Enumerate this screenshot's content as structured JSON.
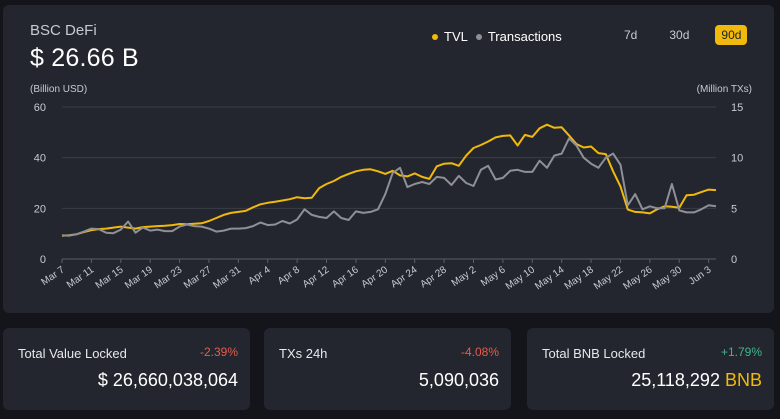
{
  "header": {
    "title": "BSC DeFi",
    "value": "$ 26.66 B",
    "left_unit": "(Billion USD)",
    "right_unit": "(Million TXs)"
  },
  "legend": {
    "tvl_label": "TVL",
    "tx_label": "Transactions",
    "tvl_color": "#f0b90b",
    "tx_color": "#8e9096"
  },
  "range_buttons": [
    "7d",
    "30d",
    "90d"
  ],
  "active_range": "90d",
  "chart_data": {
    "type": "line",
    "x": [
      "Mar 7",
      "Mar 8",
      "Mar 9",
      "Mar 10",
      "Mar 11",
      "Mar 12",
      "Mar 13",
      "Mar 14",
      "Mar 15",
      "Mar 16",
      "Mar 17",
      "Mar 18",
      "Mar 19",
      "Mar 20",
      "Mar 21",
      "Mar 22",
      "Mar 23",
      "Mar 24",
      "Mar 25",
      "Mar 26",
      "Mar 27",
      "Mar 28",
      "Mar 29",
      "Mar 30",
      "Mar 31",
      "Apr 1",
      "Apr 2",
      "Apr 3",
      "Apr 4",
      "Apr 5",
      "Apr 6",
      "Apr 7",
      "Apr 8",
      "Apr 9",
      "Apr 10",
      "Apr 11",
      "Apr 12",
      "Apr 13",
      "Apr 14",
      "Apr 15",
      "Apr 16",
      "Apr 17",
      "Apr 18",
      "Apr 19",
      "Apr 20",
      "Apr 21",
      "Apr 22",
      "Apr 23",
      "Apr 24",
      "Apr 25",
      "Apr 26",
      "Apr 27",
      "Apr 28",
      "Apr 29",
      "Apr 30",
      "May 1",
      "May 2",
      "May 3",
      "May 4",
      "May 5",
      "May 6",
      "May 7",
      "May 8",
      "May 9",
      "May 10",
      "May 11",
      "May 12",
      "May 13",
      "May 14",
      "May 15",
      "May 16",
      "May 17",
      "May 18",
      "May 19",
      "May 20",
      "May 21",
      "May 22",
      "May 23",
      "May 24",
      "May 25",
      "May 26",
      "May 27",
      "May 28",
      "May 29",
      "May 30",
      "May 31",
      "Jun 1",
      "Jun 2",
      "Jun 3",
      "Jun 4"
    ],
    "tick_labels": [
      "Mar 7",
      "Mar 11",
      "Mar 15",
      "Mar 19",
      "Mar 23",
      "Mar 27",
      "Mar 31",
      "Apr 4",
      "Apr 8",
      "Apr 12",
      "Apr 16",
      "Apr 20",
      "Apr 24",
      "Apr 28",
      "May 2",
      "May 6",
      "May 10",
      "May 14",
      "May 18",
      "May 22",
      "May 26",
      "May 30",
      "Jun 3"
    ],
    "series": [
      {
        "name": "TVL",
        "axis": "left",
        "color": "#f0b90b",
        "values": [
          9.2,
          9.4,
          9.8,
          10.6,
          11.4,
          11.8,
          12.0,
          12.4,
          12.8,
          12.4,
          12.0,
          12.6,
          12.8,
          13.0,
          13.1,
          13.4,
          13.8,
          13.7,
          13.9,
          14.1,
          15.0,
          16.2,
          17.4,
          18.2,
          18.6,
          19.0,
          20.4,
          21.6,
          22.2,
          22.6,
          23.1,
          23.6,
          24.4,
          24.0,
          24.2,
          28.0,
          29.6,
          30.8,
          32.4,
          33.6,
          34.6,
          35.2,
          35.4,
          34.6,
          33.6,
          34.8,
          33.0,
          32.6,
          33.8,
          32.4,
          31.6,
          36.6,
          37.6,
          37.8,
          36.8,
          40.8,
          43.8,
          45.0,
          46.4,
          48.0,
          48.6,
          48.8,
          44.8,
          49.0,
          48.2,
          51.6,
          53.0,
          51.8,
          52.0,
          48.8,
          45.4,
          44.0,
          44.4,
          41.8,
          41.4,
          34.6,
          28.6,
          19.5,
          18.6,
          18.4,
          18.0,
          19.6,
          20.8,
          20.6,
          20.2,
          25.2,
          25.4,
          26.4,
          27.4,
          27.2
        ]
      },
      {
        "name": "Transactions",
        "axis": "right",
        "color": "#8e9096",
        "values": [
          2.35,
          2.3,
          2.45,
          2.7,
          3.0,
          2.95,
          2.6,
          2.55,
          2.9,
          3.7,
          2.6,
          3.1,
          2.8,
          2.9,
          2.75,
          2.75,
          3.2,
          3.4,
          3.25,
          3.2,
          3.0,
          2.7,
          2.8,
          3.0,
          3.0,
          3.05,
          3.25,
          3.6,
          3.35,
          3.4,
          3.75,
          3.5,
          3.9,
          4.9,
          4.35,
          4.15,
          4.05,
          4.7,
          4.05,
          3.85,
          4.7,
          4.55,
          4.65,
          4.9,
          6.4,
          8.5,
          9.0,
          7.1,
          7.4,
          7.6,
          7.4,
          8.1,
          8.0,
          7.3,
          8.2,
          7.5,
          7.2,
          8.8,
          9.2,
          7.85,
          8.0,
          8.7,
          8.8,
          8.6,
          8.6,
          9.7,
          9.0,
          10.2,
          10.4,
          11.9,
          11.2,
          10.0,
          9.4,
          9.0,
          10.0,
          10.4,
          9.3,
          5.3,
          6.4,
          4.9,
          5.2,
          5.0,
          5.0,
          7.4,
          4.8,
          4.6,
          4.6,
          4.9,
          5.3,
          5.2
        ]
      }
    ],
    "left_axis": {
      "ticks": [
        0,
        20,
        40,
        60
      ],
      "ylim": [
        0,
        60
      ]
    },
    "right_axis": {
      "ticks": [
        0,
        5,
        10,
        15
      ],
      "ylim": [
        0,
        15
      ]
    },
    "grid": true
  },
  "cards": [
    {
      "label": "Total Value Locked",
      "change": "-2.39%",
      "change_color": "#e75b4b",
      "amount": "$ 26,660,038,064",
      "currency": ""
    },
    {
      "label": "TXs 24h",
      "change": "-4.08%",
      "change_color": "#e75b4b",
      "amount": "5,090,036",
      "currency": ""
    },
    {
      "label": "Total BNB Locked",
      "change": "+1.79%",
      "change_color": "#3fb68b",
      "amount": "25,118,292",
      "currency": "BNB"
    }
  ]
}
